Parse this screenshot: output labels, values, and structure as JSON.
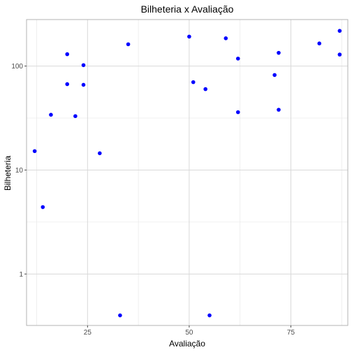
{
  "chart_data": {
    "type": "scatter",
    "title": "Bilheteria x Avaliação",
    "xlabel": "Avaliação",
    "ylabel": "Bilheteria",
    "x_scale": "linear",
    "y_scale": "log10",
    "xlim": [
      10,
      89
    ],
    "ylim": [
      0.32,
      280
    ],
    "x_ticks": [
      25,
      50,
      75
    ],
    "y_ticks": [
      1,
      10,
      100
    ],
    "y_tick_labels": [
      "1",
      "10",
      "100"
    ],
    "x_tick_labels": [
      "25",
      "50",
      "75"
    ],
    "grid": true,
    "point_color": "#0000ff",
    "points": [
      {
        "x": 12,
        "y": 15.2
      },
      {
        "x": 14,
        "y": 4.4
      },
      {
        "x": 16,
        "y": 34
      },
      {
        "x": 20,
        "y": 130
      },
      {
        "x": 20,
        "y": 67
      },
      {
        "x": 22,
        "y": 33
      },
      {
        "x": 24,
        "y": 102
      },
      {
        "x": 24,
        "y": 66
      },
      {
        "x": 28,
        "y": 14.5
      },
      {
        "x": 33,
        "y": 0.4
      },
      {
        "x": 35,
        "y": 162
      },
      {
        "x": 50,
        "y": 192
      },
      {
        "x": 51,
        "y": 70
      },
      {
        "x": 54,
        "y": 60
      },
      {
        "x": 55,
        "y": 0.4
      },
      {
        "x": 59,
        "y": 185
      },
      {
        "x": 62,
        "y": 118
      },
      {
        "x": 62,
        "y": 36
      },
      {
        "x": 71,
        "y": 82
      },
      {
        "x": 72,
        "y": 134
      },
      {
        "x": 72,
        "y": 38
      },
      {
        "x": 82,
        "y": 165
      },
      {
        "x": 87,
        "y": 218
      },
      {
        "x": 87,
        "y": 129
      }
    ]
  }
}
